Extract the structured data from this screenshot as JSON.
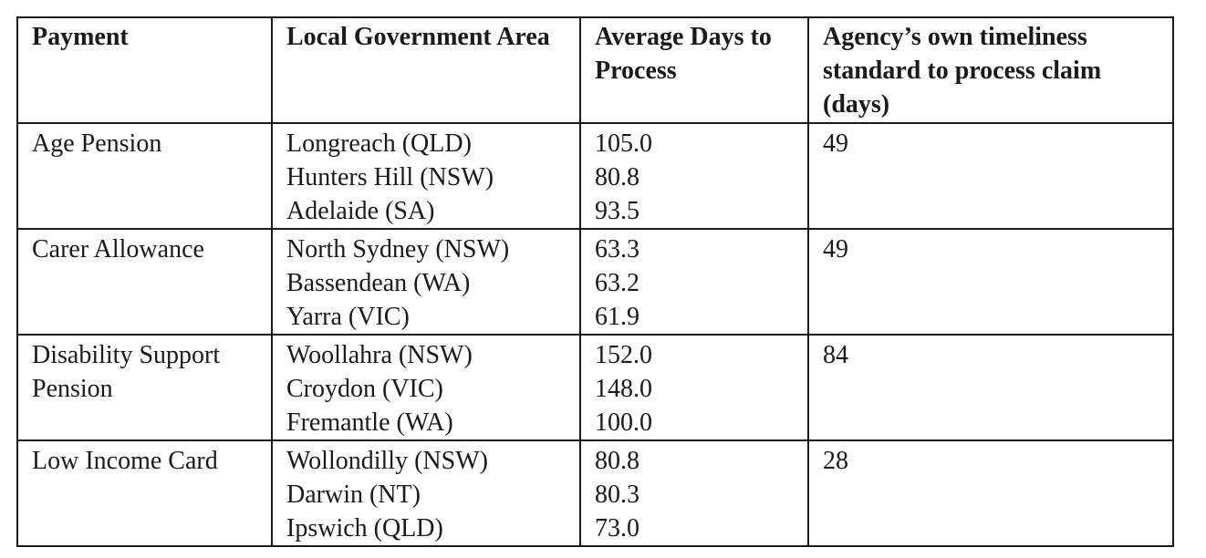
{
  "table": {
    "headers": [
      "Payment",
      "Local Government Area",
      "Average Days to Process",
      "Agency’s own timeliness standard to process claim (days)"
    ],
    "rows": [
      {
        "payment": "Age Pension",
        "areas": [
          "Longreach (QLD)",
          "Hunters Hill (NSW)",
          "Adelaide (SA)"
        ],
        "days": [
          "105.0",
          "80.8",
          "93.5"
        ],
        "standard": "49"
      },
      {
        "payment": "Carer Allowance",
        "areas": [
          "North Sydney (NSW)",
          "Bassendean (WA)",
          "Yarra (VIC)"
        ],
        "days": [
          "63.3",
          "63.2",
          "61.9"
        ],
        "standard": "49"
      },
      {
        "payment": "Disability Support Pension",
        "areas": [
          "Woollahra (NSW)",
          "Croydon (VIC)",
          "Fremantle (WA)"
        ],
        "days": [
          "152.0",
          "148.0",
          "100.0"
        ],
        "standard": "84"
      },
      {
        "payment": "Low Income Card",
        "areas": [
          "Wollondilly (NSW)",
          "Darwin (NT)",
          "Ipswich (QLD)"
        ],
        "days": [
          "80.8",
          "80.3",
          "73.0"
        ],
        "standard": "28"
      }
    ]
  }
}
